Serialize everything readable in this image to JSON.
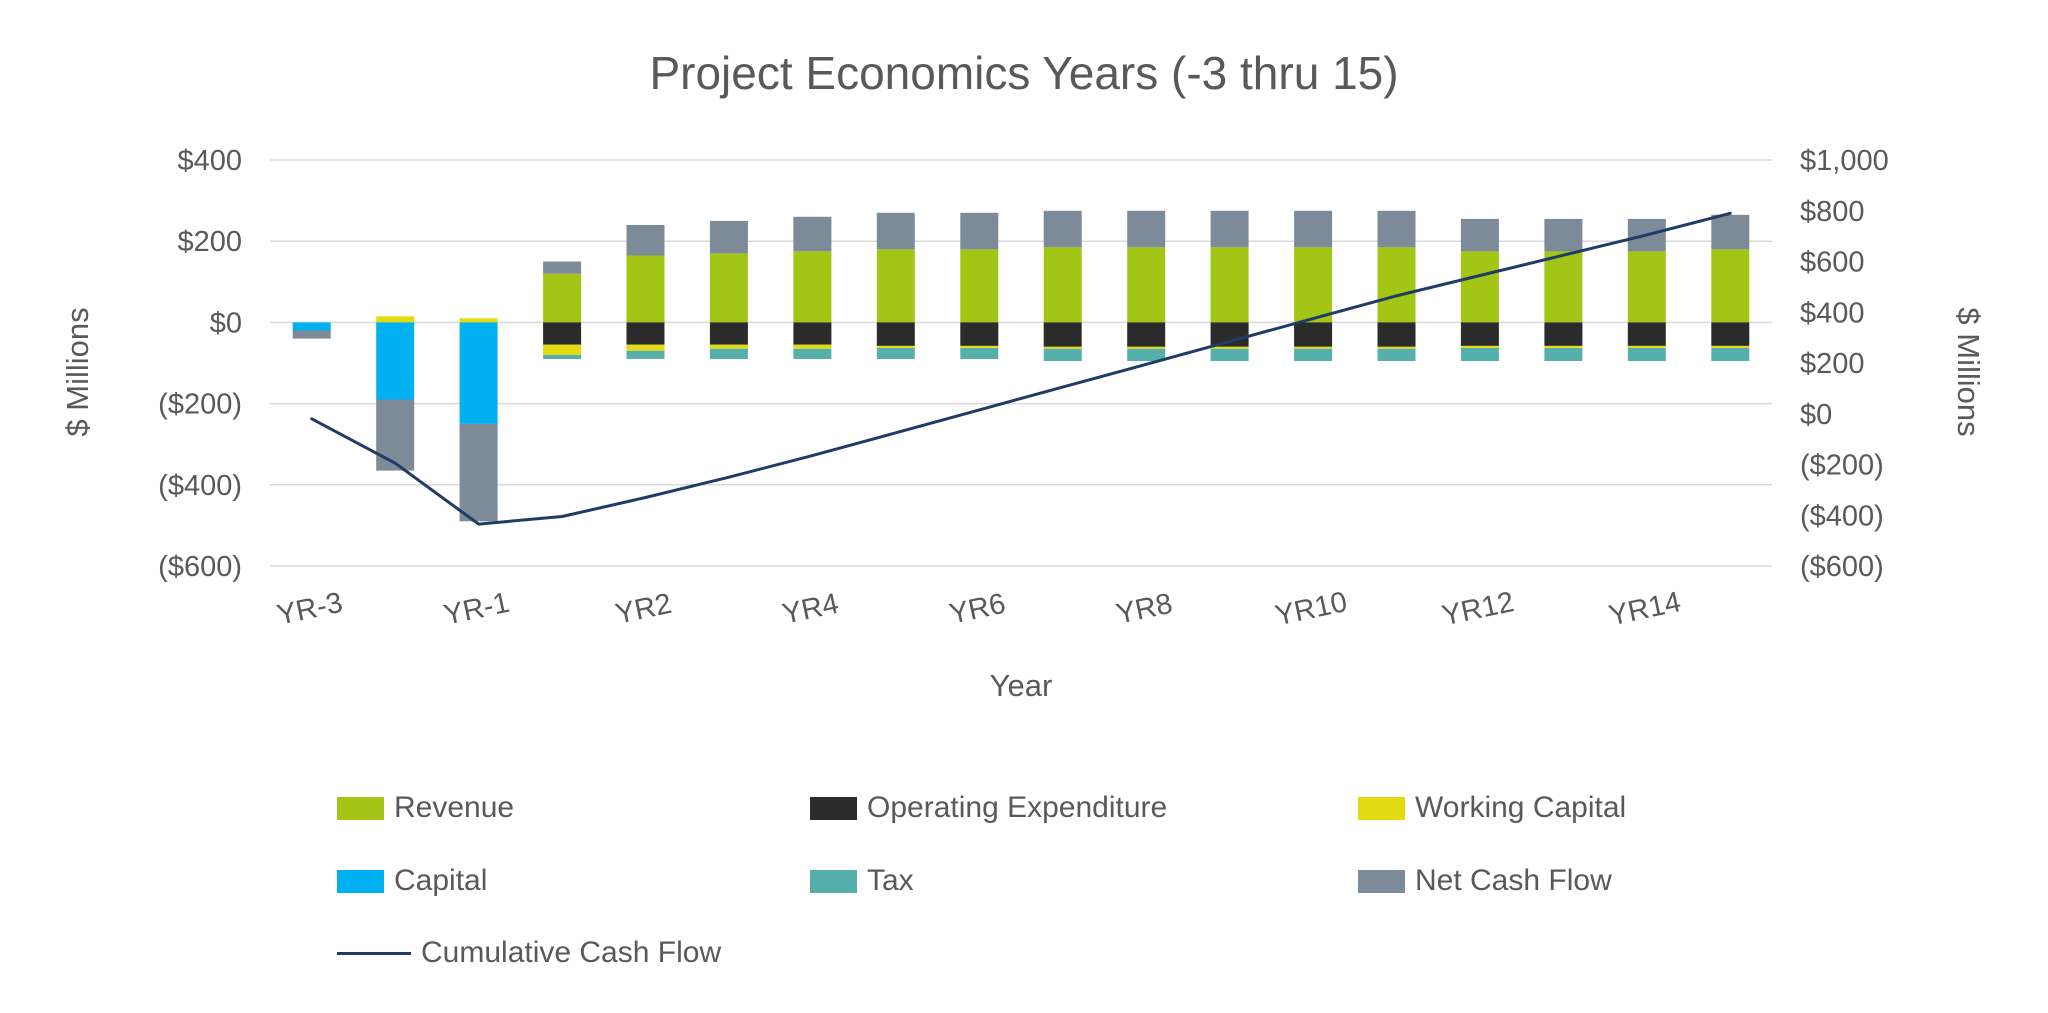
{
  "chart_data": {
    "type": "bar",
    "subtype": "stacked-bars-with-line",
    "title": "Project Economics Years (-3 thru 15)",
    "xlabel": "Year",
    "ylabel_left": "$ Millions",
    "ylabel_right": "$ Millions",
    "grid": true,
    "legend_position": "bottom",
    "categories": [
      "YR-3",
      "YR-2",
      "YR-1",
      "YR1",
      "YR2",
      "YR3",
      "YR4",
      "YR5",
      "YR6",
      "YR7",
      "YR8",
      "YR9",
      "YR10",
      "YR11",
      "YR12",
      "YR13",
      "YR14",
      "YR15"
    ],
    "x_tick_step": 2,
    "bar_series": [
      {
        "name": "Revenue",
        "color": "#A3C516",
        "values": [
          0,
          0,
          0,
          120,
          165,
          170,
          175,
          180,
          180,
          185,
          185,
          185,
          185,
          185,
          175,
          175,
          175,
          180
        ]
      },
      {
        "name": "Operating Expenditure",
        "color": "#2B2B2B",
        "values": [
          0,
          0,
          0,
          -55,
          -55,
          -55,
          -55,
          -58,
          -58,
          -60,
          -60,
          -60,
          -60,
          -60,
          -58,
          -58,
          -58,
          -58
        ]
      },
      {
        "name": "Working Capital",
        "color": "#E3DB12",
        "values": [
          0,
          15,
          10,
          -25,
          -15,
          -10,
          -10,
          -5,
          -5,
          -5,
          -5,
          -5,
          -5,
          -5,
          -5,
          -5,
          -5,
          -5
        ]
      },
      {
        "name": "Capital",
        "color": "#00B0F0",
        "values": [
          -20,
          -190,
          -250,
          0,
          0,
          0,
          0,
          0,
          0,
          0,
          0,
          0,
          0,
          0,
          0,
          0,
          0,
          0
        ]
      },
      {
        "name": "Tax",
        "color": "#55B0AB",
        "values": [
          0,
          0,
          0,
          -10,
          -20,
          -25,
          -25,
          -27,
          -27,
          -30,
          -30,
          -30,
          -30,
          -30,
          -32,
          -32,
          -32,
          -32
        ]
      },
      {
        "name": "Net Cash Flow",
        "color": "#7C8B97",
        "values": [
          -20,
          -175,
          -240,
          30,
          75,
          80,
          85,
          90,
          90,
          90,
          90,
          90,
          90,
          90,
          80,
          80,
          80,
          85
        ]
      }
    ],
    "line_series": {
      "name": "Cumulative Cash Flow",
      "type": "line",
      "color": "#1F3B66",
      "axis": "right",
      "values": [
        -20,
        -195,
        -435,
        -405,
        -330,
        -250,
        -165,
        -75,
        15,
        105,
        195,
        285,
        375,
        465,
        545,
        625,
        705,
        790
      ]
    },
    "axes": {
      "left": {
        "title": "$ Millions",
        "min": -600,
        "max": 400,
        "tick_values": [
          400,
          200,
          0,
          -200,
          -400,
          -600
        ],
        "tick_labels": [
          "$400",
          "$200",
          "$0",
          "($200)",
          "($400)",
          "($600)"
        ]
      },
      "right": {
        "title": "$ Millions",
        "min": -600,
        "max": 1000,
        "tick_values": [
          1000,
          800,
          600,
          400,
          200,
          0,
          -200,
          -400,
          -600
        ],
        "tick_labels": [
          "$1,000",
          "$800",
          "$600",
          "$400",
          "$200",
          "$0",
          "($200)",
          "($400)",
          "($600)"
        ]
      },
      "x": {
        "title": "Year",
        "shown_tick_labels": [
          "YR-3",
          "YR-1",
          "YR2",
          "YR4",
          "YR6",
          "YR8",
          "YR10",
          "YR12",
          "YR14"
        ]
      }
    },
    "colors": {
      "gridline": "#D9D9D9",
      "text": "#595959",
      "background": "#FFFFFF"
    }
  }
}
